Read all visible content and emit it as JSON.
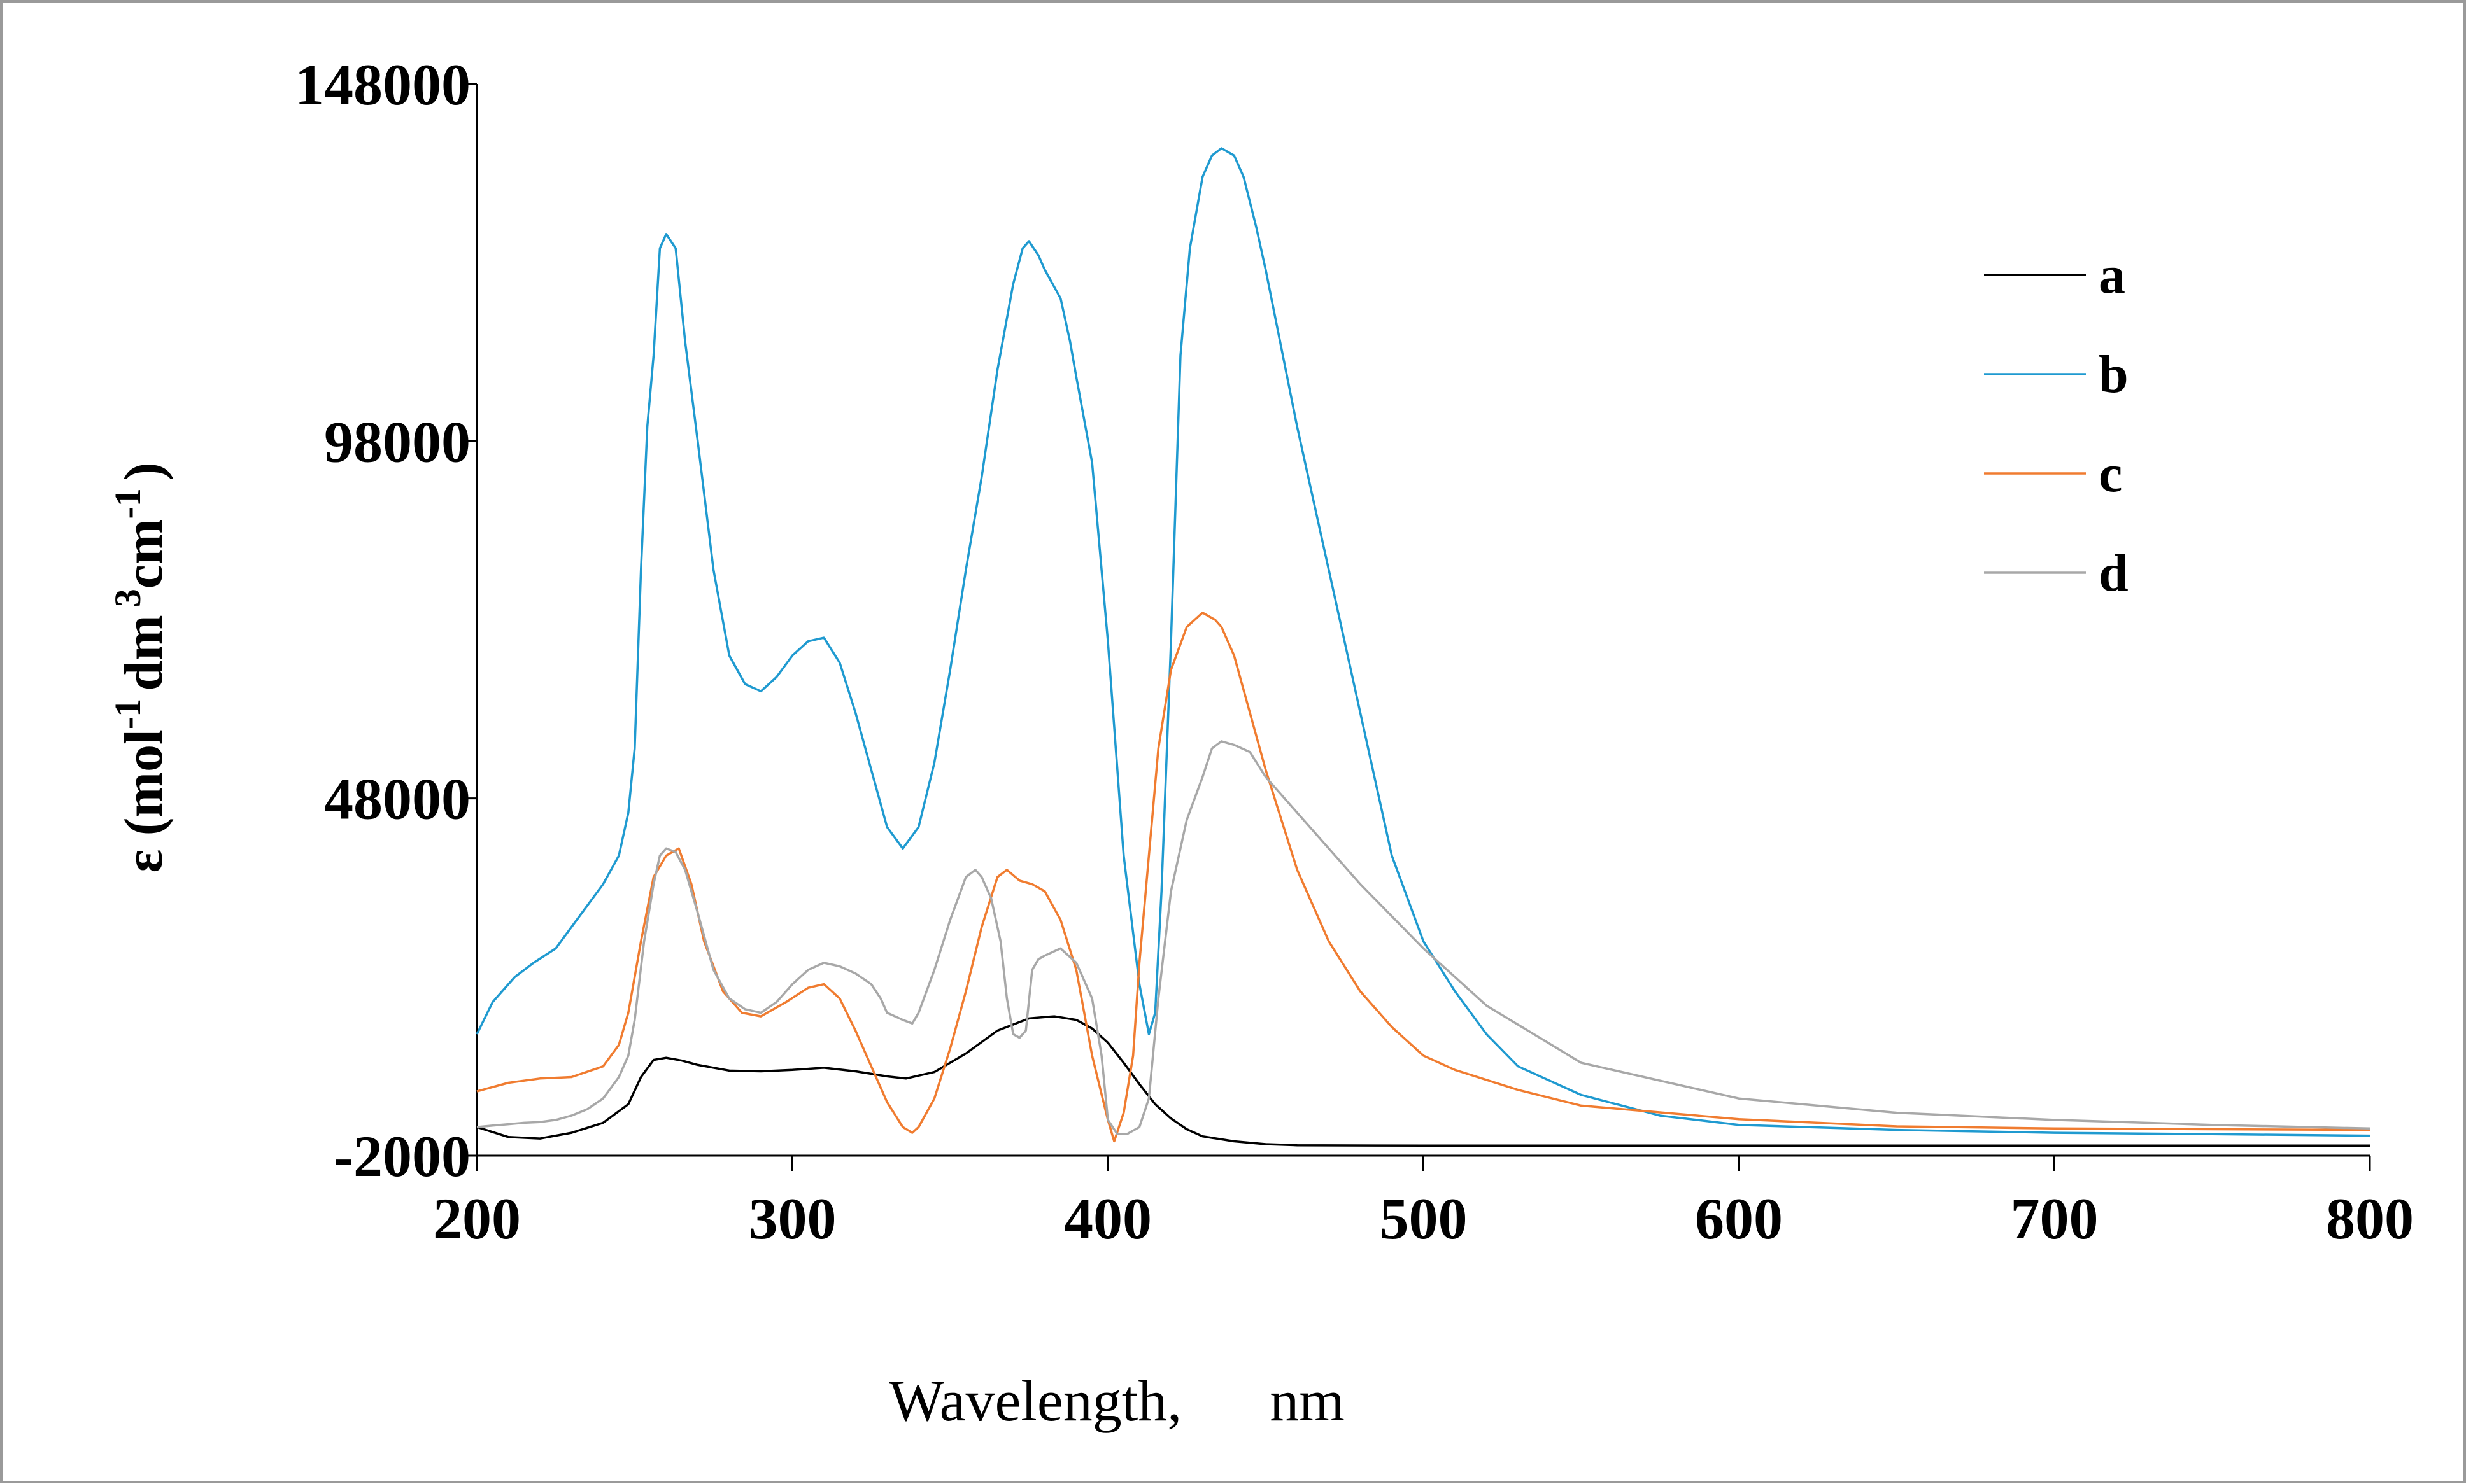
{
  "chart_data": {
    "type": "line",
    "xlabel": "Wavelength,      nm",
    "ylabel": "ε (mol-1 dm 3 cm -1 )",
    "ylabel_parts": [
      "ε (mol",
      "-1",
      "dm",
      "3",
      "cm",
      "-1",
      ")"
    ],
    "xlim": [
      200,
      800
    ],
    "ylim": [
      -2000,
      148000
    ],
    "xticks": [
      200,
      300,
      400,
      500,
      600,
      700,
      800
    ],
    "yticks": [
      -2000,
      48000,
      98000,
      148000
    ],
    "xtick_labels": [
      "200",
      "300",
      "400",
      "500",
      "600",
      "700",
      "800"
    ],
    "ytick_labels": [
      "-2000",
      "48000",
      "98000",
      "148000"
    ],
    "grid": false,
    "legend_position": "top-right",
    "series": [
      {
        "name": "a",
        "color": "#000000",
        "x": [
          200,
          210,
          220,
          230,
          240,
          248,
          252,
          256,
          260,
          265,
          270,
          280,
          290,
          300,
          310,
          320,
          330,
          336,
          345,
          355,
          365,
          375,
          383,
          390,
          395,
          400,
          405,
          410,
          415,
          420,
          425,
          430,
          440,
          450,
          460,
          500,
          600,
          700,
          800
        ],
        "values": [
          2000,
          600,
          400,
          1200,
          2600,
          5200,
          9000,
          11400,
          11700,
          11300,
          10700,
          9900,
          9800,
          10000,
          10300,
          9800,
          9100,
          8800,
          9700,
          12300,
          15500,
          17200,
          17500,
          17000,
          15800,
          13800,
          11000,
          8000,
          5200,
          3200,
          1700,
          700,
          0,
          -400,
          -550,
          -600,
          -600,
          -600,
          -600
        ]
      },
      {
        "name": "b",
        "color": "#1f9ad0",
        "x": [
          200,
          205,
          208,
          212,
          218,
          225,
          230,
          235,
          240,
          245,
          248,
          250,
          252,
          254,
          256,
          258,
          260,
          263,
          266,
          270,
          275,
          280,
          285,
          290,
          295,
          300,
          305,
          310,
          315,
          320,
          325,
          330,
          335,
          340,
          345,
          350,
          355,
          360,
          365,
          370,
          373,
          375,
          378,
          380,
          385,
          388,
          390,
          395,
          400,
          405,
          410,
          413,
          415,
          417,
          420,
          423,
          426,
          430,
          433,
          436,
          440,
          443,
          447,
          450,
          460,
          470,
          480,
          490,
          500,
          510,
          520,
          530,
          550,
          575,
          600,
          650,
          700,
          750,
          800
        ],
        "values": [
          15000,
          19500,
          21000,
          23000,
          25000,
          27000,
          30000,
          33000,
          36000,
          40000,
          46000,
          55000,
          80000,
          100000,
          110000,
          125000,
          127000,
          125000,
          112000,
          98000,
          80000,
          68000,
          64000,
          63000,
          65000,
          68000,
          70000,
          70500,
          67000,
          60000,
          52000,
          44000,
          41000,
          44000,
          53000,
          66000,
          80000,
          93000,
          108000,
          120000,
          125000,
          126000,
          124000,
          122000,
          118000,
          112000,
          107000,
          95000,
          70000,
          40000,
          22000,
          15000,
          18000,
          35000,
          70000,
          110000,
          125000,
          135000,
          138000,
          139000,
          138000,
          135000,
          128000,
          122000,
          100000,
          80000,
          60000,
          40000,
          28000,
          21000,
          15000,
          10500,
          6500,
          3600,
          2300,
          1600,
          1200,
          1000,
          800
        ]
      },
      {
        "name": "c",
        "color": "#f07c30",
        "x": [
          200,
          210,
          220,
          230,
          240,
          245,
          248,
          252,
          256,
          260,
          264,
          268,
          272,
          278,
          284,
          290,
          298,
          305,
          310,
          315,
          320,
          325,
          330,
          335,
          338,
          340,
          345,
          350,
          355,
          360,
          365,
          368,
          372,
          376,
          380,
          385,
          390,
          395,
          400,
          402,
          405,
          408,
          410,
          413,
          416,
          420,
          425,
          430,
          434,
          436,
          440,
          445,
          450,
          460,
          470,
          480,
          490,
          500,
          510,
          530,
          550,
          600,
          650,
          700,
          750,
          800
        ],
        "values": [
          7000,
          8200,
          8800,
          9000,
          10500,
          13500,
          18000,
          28000,
          37000,
          40000,
          41000,
          36000,
          28000,
          21000,
          18000,
          17500,
          19500,
          21500,
          22000,
          20000,
          15500,
          10500,
          5500,
          2000,
          1200,
          2000,
          6000,
          13000,
          21000,
          30000,
          37000,
          38000,
          36500,
          36000,
          35000,
          31000,
          24000,
          12000,
          3000,
          0,
          4000,
          12000,
          25000,
          40000,
          55000,
          66000,
          72000,
          74000,
          73000,
          72000,
          68000,
          60000,
          52000,
          38000,
          28000,
          21000,
          16000,
          12000,
          10000,
          7200,
          5000,
          3100,
          2100,
          1800,
          1700,
          1600
        ]
      },
      {
        "name": "d",
        "color": "#a8a8a8",
        "x": [
          200,
          205,
          210,
          215,
          220,
          225,
          230,
          235,
          240,
          245,
          248,
          250,
          253,
          256,
          258,
          260,
          263,
          266,
          270,
          275,
          280,
          285,
          290,
          295,
          300,
          305,
          310,
          315,
          320,
          325,
          328,
          330,
          335,
          338,
          340,
          345,
          350,
          355,
          358,
          360,
          363,
          366,
          368,
          370,
          372,
          374,
          376,
          378,
          380,
          385,
          390,
          395,
          398,
          400,
          403,
          406,
          410,
          413,
          416,
          420,
          425,
          430,
          433,
          436,
          440,
          445,
          450,
          460,
          470,
          480,
          500,
          520,
          550,
          600,
          650,
          700,
          750,
          800
        ],
        "values": [
          2000,
          2200,
          2400,
          2600,
          2700,
          3000,
          3600,
          4500,
          6000,
          9000,
          12000,
          17000,
          28000,
          36000,
          40000,
          41000,
          40500,
          38000,
          32000,
          24000,
          20000,
          18500,
          18000,
          19500,
          22000,
          24000,
          25000,
          24500,
          23500,
          22000,
          20000,
          18000,
          17000,
          16500,
          18000,
          24000,
          31000,
          37000,
          38000,
          37000,
          34000,
          28000,
          20000,
          15000,
          14500,
          15500,
          24000,
          25500,
          26000,
          27000,
          25000,
          20000,
          12000,
          3000,
          1000,
          1000,
          2000,
          6000,
          20000,
          35000,
          45000,
          51000,
          55000,
          56000,
          55500,
          54500,
          51000,
          46000,
          41000,
          36000,
          27000,
          19000,
          11000,
          6000,
          4000,
          3000,
          2300,
          1800
        ]
      }
    ]
  }
}
